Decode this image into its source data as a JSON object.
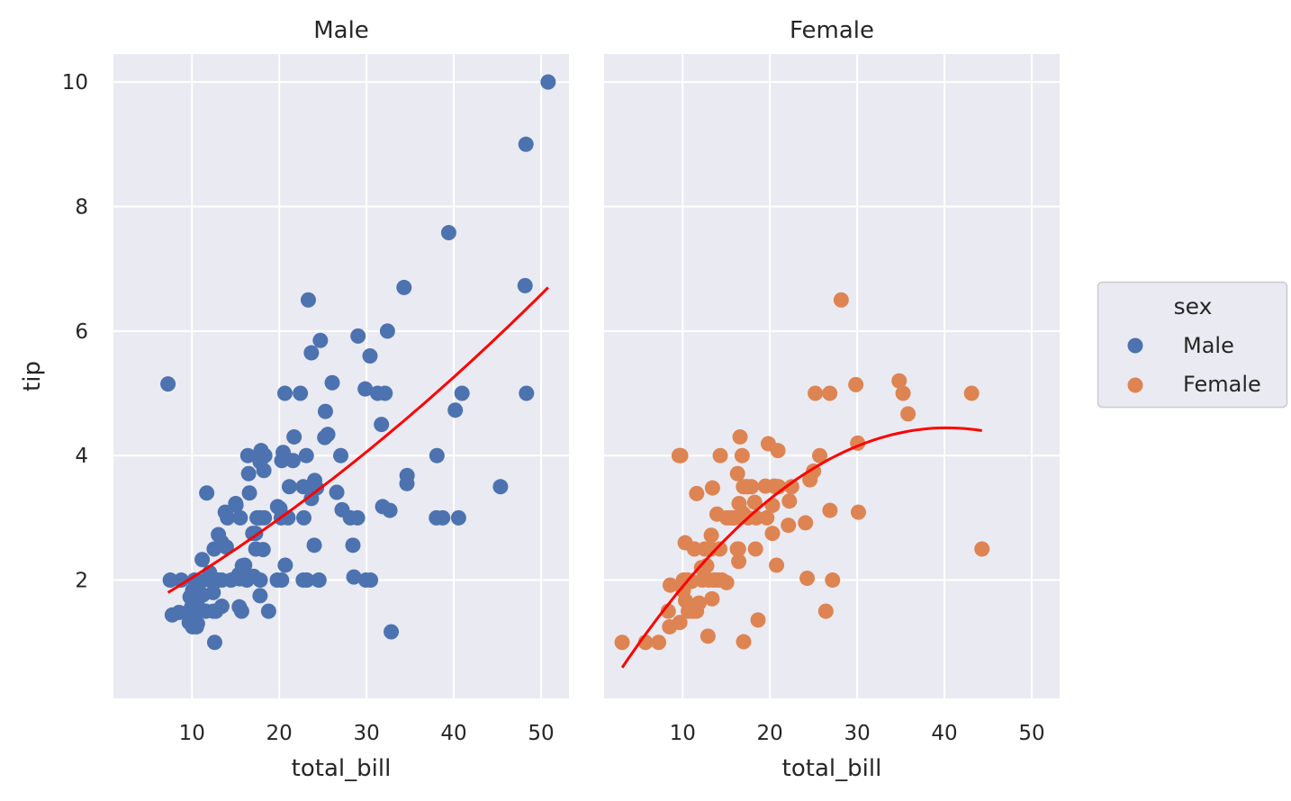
{
  "chart_data": {
    "type": "scatter",
    "facet_variable": "sex",
    "shared_ylabel": "tip",
    "shared_xlabel": "total_bill",
    "xlim": [
      1,
      53.2
    ],
    "ylim": [
      0.1,
      10.45
    ],
    "x_ticks": [
      10,
      20,
      30,
      40,
      50
    ],
    "y_ticks": [
      2,
      4,
      6,
      8,
      10
    ],
    "grid": true,
    "legend": {
      "title": "sex",
      "placement": "right",
      "entries": [
        {
          "label": "Male",
          "color": "#4c72b0"
        },
        {
          "label": "Female",
          "color": "#dd8452"
        }
      ]
    },
    "colors": {
      "background": "#eaeaf2",
      "grid": "#ffffff",
      "fit_line": "#ff0000"
    },
    "panels": [
      {
        "title": "Male",
        "color": "#4c72b0",
        "fit": {
          "order": 1,
          "x_range": [
            7.25,
            50.81
          ],
          "y_at_start": 1.8,
          "y_at_end": 6.7,
          "curve_mid": 3.95
        },
        "points": [
          [
            50.81,
            10.0
          ],
          [
            48.27,
            9.0
          ],
          [
            39.42,
            7.58
          ],
          [
            48.17,
            6.73
          ],
          [
            34.3,
            6.7
          ],
          [
            23.33,
            6.5
          ],
          [
            24.71,
            5.85
          ],
          [
            23.68,
            5.65
          ],
          [
            29.03,
            5.92
          ],
          [
            32.4,
            6.0
          ],
          [
            30.4,
            5.6
          ],
          [
            26.07,
            5.17
          ],
          [
            7.25,
            5.15
          ],
          [
            20.65,
            5.0
          ],
          [
            22.42,
            5.0
          ],
          [
            29.85,
            5.07
          ],
          [
            31.27,
            5.0
          ],
          [
            32.13,
            5.0
          ],
          [
            40.94,
            5.0
          ],
          [
            48.33,
            5.0
          ],
          [
            25.29,
            4.71
          ],
          [
            40.17,
            4.73
          ],
          [
            31.71,
            4.5
          ],
          [
            25.56,
            4.34
          ],
          [
            25.21,
            4.29
          ],
          [
            21.7,
            4.3
          ],
          [
            17.92,
            4.08
          ],
          [
            20.45,
            4.05
          ],
          [
            16.4,
            4.0
          ],
          [
            18.35,
            4.0
          ],
          [
            17.59,
            4.0
          ],
          [
            23.1,
            4.0
          ],
          [
            27.05,
            4.0
          ],
          [
            38.07,
            4.0
          ],
          [
            17.81,
            3.9
          ],
          [
            21.58,
            3.92
          ],
          [
            20.29,
            3.92
          ],
          [
            16.49,
            3.71
          ],
          [
            18.24,
            3.76
          ],
          [
            34.65,
            3.68
          ],
          [
            34.63,
            3.55
          ],
          [
            45.35,
            3.5
          ],
          [
            22.76,
            3.5
          ],
          [
            21.16,
            3.5
          ],
          [
            24.27,
            3.48
          ],
          [
            24.06,
            3.6
          ],
          [
            11.69,
            3.4
          ],
          [
            16.58,
            3.4
          ],
          [
            20.08,
            3.15
          ],
          [
            26.59,
            3.41
          ],
          [
            23.68,
            3.31
          ],
          [
            19.81,
            3.18
          ],
          [
            31.85,
            3.18
          ],
          [
            32.68,
            3.12
          ],
          [
            27.2,
            3.13
          ],
          [
            15.01,
            3.23
          ],
          [
            15.04,
            3.2
          ],
          [
            13.81,
            3.09
          ],
          [
            14.07,
            3.0
          ],
          [
            15.53,
            3.0
          ],
          [
            17.78,
            3.0
          ],
          [
            18.29,
            3.0
          ],
          [
            20.23,
            3.0
          ],
          [
            21.01,
            3.0
          ],
          [
            22.82,
            3.0
          ],
          [
            28.15,
            3.0
          ],
          [
            28.97,
            3.0
          ],
          [
            38.01,
            3.0
          ],
          [
            38.73,
            3.0
          ],
          [
            40.55,
            3.0
          ],
          [
            17.46,
            3.0
          ],
          [
            13.03,
            2.73
          ],
          [
            16.97,
            2.75
          ],
          [
            17.29,
            2.75
          ],
          [
            18.15,
            2.49
          ],
          [
            24.01,
            2.56
          ],
          [
            28.44,
            2.56
          ],
          [
            17.31,
            2.5
          ],
          [
            13.94,
            2.53
          ],
          [
            12.54,
            2.5
          ],
          [
            11.17,
            2.33
          ],
          [
            16.04,
            2.24
          ],
          [
            20.69,
            2.24
          ],
          [
            15.77,
            2.23
          ],
          [
            12.02,
            2.12
          ],
          [
            17.07,
            2.06
          ],
          [
            15.36,
            2.09
          ],
          [
            28.55,
            2.05
          ],
          [
            19.77,
            2.0
          ],
          [
            20.27,
            2.0
          ],
          [
            23.17,
            2.0
          ],
          [
            24.52,
            2.0
          ],
          [
            24.55,
            2.0
          ],
          [
            29.93,
            2.0
          ],
          [
            30.46,
            2.0
          ],
          [
            22.75,
            2.0
          ],
          [
            17.82,
            2.0
          ],
          [
            15.48,
            2.02
          ],
          [
            14.48,
            2.0
          ],
          [
            13.0,
            2.0
          ],
          [
            10.07,
            1.83
          ],
          [
            12.03,
            2.0
          ],
          [
            8.77,
            2.0
          ],
          [
            7.51,
            2.0
          ],
          [
            10.29,
            2.0
          ],
          [
            16.29,
            2.0
          ],
          [
            12.69,
            2.0
          ],
          [
            13.42,
            2.0
          ],
          [
            13.39,
            2.61
          ],
          [
            11.59,
            1.5
          ],
          [
            12.43,
            1.8
          ],
          [
            10.33,
            1.67
          ],
          [
            11.02,
            1.98
          ],
          [
            10.27,
            1.71
          ],
          [
            12.74,
            1.5
          ],
          [
            11.24,
            1.76
          ],
          [
            17.8,
            1.75
          ],
          [
            15.42,
            1.57
          ],
          [
            13.42,
            1.58
          ],
          [
            15.69,
            1.5
          ],
          [
            18.78,
            1.5
          ],
          [
            9.55,
            1.45
          ],
          [
            8.52,
            1.48
          ],
          [
            7.74,
            1.44
          ],
          [
            10.07,
            1.25
          ],
          [
            10.59,
            1.61
          ],
          [
            10.34,
            1.66
          ],
          [
            10.65,
            1.5
          ],
          [
            9.78,
            1.73
          ],
          [
            12.46,
            1.5
          ],
          [
            9.94,
            1.56
          ],
          [
            10.51,
            1.25
          ],
          [
            10.63,
            1.3
          ],
          [
            9.68,
            1.32
          ],
          [
            12.6,
            1.0
          ],
          [
            32.83,
            1.17
          ]
        ]
      },
      {
        "title": "Female",
        "color": "#dd8452",
        "fit": {
          "order": 2,
          "x_range": [
            3.07,
            44.3
          ],
          "coefficients": [
            -0.067,
            0.224,
            -0.00278
          ]
        },
        "points": [
          [
            28.17,
            6.5
          ],
          [
            35.83,
            4.67
          ],
          [
            34.81,
            5.2
          ],
          [
            35.26,
            5.0
          ],
          [
            43.11,
            5.0
          ],
          [
            29.85,
            5.14
          ],
          [
            25.2,
            5.0
          ],
          [
            26.86,
            5.0
          ],
          [
            30.06,
            4.2
          ],
          [
            26.41,
            1.5
          ],
          [
            44.3,
            2.5
          ],
          [
            27.18,
            2.0
          ],
          [
            26.88,
            3.12
          ],
          [
            30.14,
            3.09
          ],
          [
            24.27,
            2.03
          ],
          [
            22.23,
            3.27
          ],
          [
            20.76,
            2.24
          ],
          [
            20.29,
            2.75
          ],
          [
            20.29,
            3.2
          ],
          [
            19.82,
            4.19
          ],
          [
            20.92,
            4.08
          ],
          [
            16.47,
            3.23
          ],
          [
            16.27,
            2.5
          ],
          [
            14.15,
            2.0
          ],
          [
            14.52,
            2.0
          ],
          [
            13.94,
            3.06
          ],
          [
            16.29,
            3.71
          ],
          [
            15.04,
            1.96
          ],
          [
            17.31,
            3.5
          ],
          [
            16.58,
            4.3
          ],
          [
            14.26,
            2.5
          ],
          [
            9.78,
            4.0
          ],
          [
            14.31,
            4.0
          ],
          [
            17.51,
            3.0
          ],
          [
            15.06,
            3.0
          ],
          [
            15.98,
            3.0
          ],
          [
            13.28,
            2.72
          ],
          [
            16.43,
            2.3
          ],
          [
            16.4,
            2.5
          ],
          [
            16.97,
            3.5
          ],
          [
            17.89,
            3.5
          ],
          [
            18.26,
            3.25
          ],
          [
            18.35,
            2.5
          ],
          [
            18.64,
            1.36
          ],
          [
            19.65,
            3.0
          ],
          [
            20.49,
            3.51
          ],
          [
            20.95,
            3.5
          ],
          [
            22.49,
            3.5
          ],
          [
            22.12,
            2.88
          ],
          [
            24.08,
            2.92
          ],
          [
            25.0,
            3.75
          ],
          [
            24.59,
            3.61
          ],
          [
            25.71,
            4.0
          ],
          [
            10.33,
            1.67
          ],
          [
            10.65,
            1.5
          ],
          [
            11.35,
            2.5
          ],
          [
            12.43,
            2.2
          ],
          [
            12.9,
            1.1
          ],
          [
            12.76,
            2.23
          ],
          [
            13.42,
            3.48
          ],
          [
            13.0,
            2.0
          ],
          [
            13.51,
            2.0
          ],
          [
            13.27,
            2.5
          ],
          [
            13.37,
            1.7
          ],
          [
            11.87,
            1.63
          ],
          [
            11.59,
            1.5
          ],
          [
            10.34,
            2.0
          ],
          [
            10.07,
            1.83
          ],
          [
            10.09,
            2.0
          ],
          [
            10.63,
            2.0
          ],
          [
            9.68,
            1.32
          ],
          [
            9.6,
            4.0
          ],
          [
            8.58,
            1.92
          ],
          [
            8.35,
            1.5
          ],
          [
            8.51,
            1.25
          ],
          [
            11.02,
            1.98
          ],
          [
            11.61,
            3.39
          ],
          [
            11.17,
            1.5
          ],
          [
            10.29,
            2.6
          ],
          [
            12.16,
            2.2
          ],
          [
            12.54,
            2.5
          ],
          [
            13.81,
            2.0
          ],
          [
            12.26,
            2.0
          ],
          [
            15.38,
            3.0
          ],
          [
            16.82,
            4.0
          ],
          [
            17.47,
            3.5
          ],
          [
            18.43,
            3.0
          ],
          [
            19.49,
            3.51
          ],
          [
            16.93,
            3.07
          ],
          [
            15.7,
            3.0
          ],
          [
            7.25,
            1.0
          ],
          [
            5.75,
            1.0
          ],
          [
            3.07,
            1.0
          ],
          [
            16.99,
            1.01
          ],
          [
            20.65,
            3.5
          ],
          [
            21.01,
            3.5
          ]
        ]
      }
    ]
  }
}
